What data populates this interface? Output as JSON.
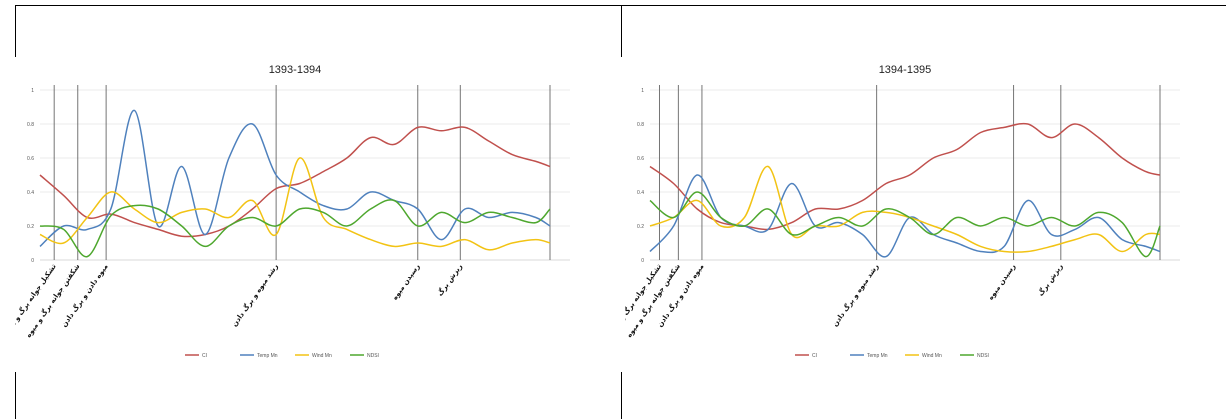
{
  "chart_data": [
    {
      "type": "line",
      "title": "1393-1394",
      "ylim": [
        0,
        1
      ],
      "yticks": [
        "0",
        "0.2",
        "0.4",
        "0.6",
        "0.8",
        "1"
      ],
      "stages": [
        {
          "label": "تشکیل جوانه برگ و میوه",
          "x": 3
        },
        {
          "label": "شکفتن جوانه برگ و میوه",
          "x": 8
        },
        {
          "label": "میوه دادن و برگ دادن",
          "x": 14
        },
        {
          "label": "رشد میوه و برگ دادن",
          "x": 50
        },
        {
          "label": "رسیدن میوه",
          "x": 80
        },
        {
          "label": "ریزش برگ",
          "x": 89
        },
        {
          "label": "",
          "x": 108
        }
      ],
      "x": [
        0,
        5,
        10,
        15,
        20,
        25,
        30,
        35,
        40,
        45,
        50,
        55,
        60,
        65,
        70,
        75,
        80,
        85,
        90,
        95,
        100,
        105,
        108
      ],
      "series": [
        {
          "name": "CI",
          "color": "#c0504d",
          "values": [
            0.5,
            0.38,
            0.25,
            0.27,
            0.22,
            0.18,
            0.14,
            0.15,
            0.2,
            0.3,
            0.42,
            0.45,
            0.52,
            0.6,
            0.72,
            0.68,
            0.78,
            0.76,
            0.78,
            0.7,
            0.62,
            0.58,
            0.55
          ]
        },
        {
          "name": "Temp Mn",
          "color": "#4f81bd",
          "values": [
            0.08,
            0.2,
            0.18,
            0.3,
            0.88,
            0.2,
            0.55,
            0.15,
            0.6,
            0.8,
            0.5,
            0.4,
            0.32,
            0.3,
            0.4,
            0.35,
            0.3,
            0.12,
            0.3,
            0.25,
            0.28,
            0.25,
            0.2
          ]
        },
        {
          "name": "Wind Mn",
          "color": "#f2c314",
          "values": [
            0.15,
            0.1,
            0.25,
            0.4,
            0.3,
            0.22,
            0.28,
            0.3,
            0.25,
            0.35,
            0.15,
            0.6,
            0.25,
            0.18,
            0.12,
            0.08,
            0.1,
            0.08,
            0.12,
            0.06,
            0.1,
            0.12,
            0.1
          ]
        },
        {
          "name": "NDSI",
          "color": "#4ea72e",
          "values": [
            0.2,
            0.18,
            0.02,
            0.26,
            0.32,
            0.3,
            0.2,
            0.08,
            0.2,
            0.25,
            0.2,
            0.3,
            0.28,
            0.2,
            0.3,
            0.35,
            0.2,
            0.28,
            0.22,
            0.28,
            0.25,
            0.22,
            0.3
          ]
        }
      ]
    },
    {
      "type": "line",
      "title": "1394-1395",
      "ylim": [
        0,
        1
      ],
      "yticks": [
        "0",
        "0.2",
        "0.4",
        "0.6",
        "0.8",
        "1"
      ],
      "stages": [
        {
          "label": "تشکیل جوانه برگ و میوه",
          "x": 2
        },
        {
          "label": "شکفتن جوانه برگ و میوه",
          "x": 6
        },
        {
          "label": "میوه دادن و برگ دادن",
          "x": 11
        },
        {
          "label": "رشد میوه و برگ دادن",
          "x": 48
        },
        {
          "label": "رسیدن میوه",
          "x": 77
        },
        {
          "label": "ریزش برگ",
          "x": 87
        },
        {
          "label": "",
          "x": 108
        }
      ],
      "x": [
        0,
        5,
        10,
        15,
        20,
        25,
        30,
        35,
        40,
        45,
        50,
        55,
        60,
        65,
        70,
        75,
        80,
        85,
        90,
        95,
        100,
        105,
        108
      ],
      "series": [
        {
          "name": "CI",
          "color": "#c0504d",
          "values": [
            0.55,
            0.45,
            0.3,
            0.22,
            0.2,
            0.18,
            0.22,
            0.3,
            0.3,
            0.35,
            0.45,
            0.5,
            0.6,
            0.65,
            0.75,
            0.78,
            0.8,
            0.72,
            0.8,
            0.72,
            0.6,
            0.52,
            0.5
          ]
        },
        {
          "name": "Temp Mn",
          "color": "#4f81bd",
          "values": [
            0.05,
            0.2,
            0.5,
            0.25,
            0.2,
            0.18,
            0.45,
            0.2,
            0.22,
            0.15,
            0.02,
            0.25,
            0.15,
            0.1,
            0.05,
            0.08,
            0.35,
            0.15,
            0.18,
            0.25,
            0.12,
            0.08,
            0.05
          ]
        },
        {
          "name": "Wind Mn",
          "color": "#f2c314",
          "values": [
            0.2,
            0.25,
            0.35,
            0.2,
            0.25,
            0.55,
            0.15,
            0.2,
            0.2,
            0.28,
            0.28,
            0.25,
            0.2,
            0.15,
            0.08,
            0.05,
            0.05,
            0.08,
            0.12,
            0.15,
            0.05,
            0.15,
            0.15
          ]
        },
        {
          "name": "NDSI",
          "color": "#4ea72e",
          "values": [
            0.35,
            0.25,
            0.4,
            0.25,
            0.2,
            0.3,
            0.15,
            0.2,
            0.25,
            0.2,
            0.3,
            0.25,
            0.15,
            0.25,
            0.2,
            0.25,
            0.2,
            0.25,
            0.2,
            0.28,
            0.22,
            0.02,
            0.2
          ]
        }
      ]
    }
  ]
}
